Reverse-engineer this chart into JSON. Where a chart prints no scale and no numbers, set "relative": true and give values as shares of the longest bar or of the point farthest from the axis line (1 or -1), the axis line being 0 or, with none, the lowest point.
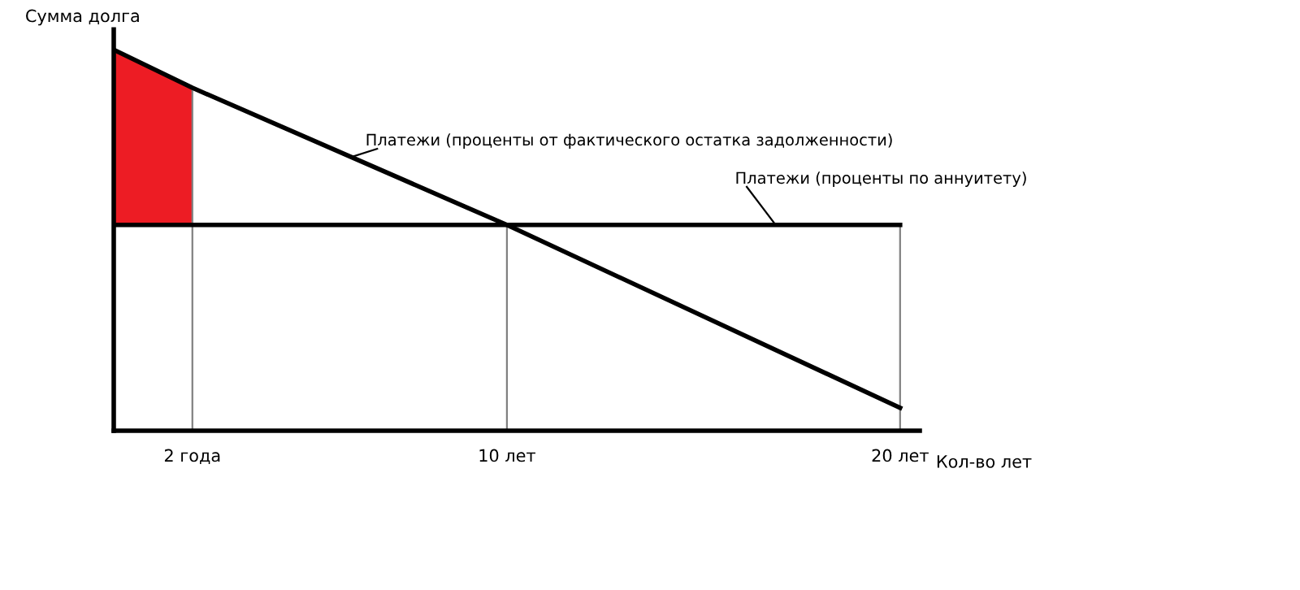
{
  "chart_data": {
    "type": "line",
    "relative": true,
    "tick_labels": "x",
    "grid": false,
    "legend": false,
    "marker": "none",
    "line_style": "solid",
    "xlabel": "Кол-во лет",
    "ylabel": "Сумма долга",
    "xlim": [
      0,
      20.5
    ],
    "xticks": [
      {
        "value": 2,
        "label": "2 года"
      },
      {
        "value": 10,
        "label": "10 лет"
      },
      {
        "value": 20,
        "label": "20 лет"
      }
    ],
    "series": [
      {
        "type": "area",
        "color": "#ed1c24",
        "x": [
          0,
          2
        ],
        "values": [
          1,
          0.9
        ]
      },
      {
        "name": "Платежи (проценты от фактического остатка задолженности)",
        "color": "#000000",
        "x": [
          0,
          2,
          10,
          20
        ],
        "values": [
          1,
          0.9,
          0.54,
          0.06
        ]
      },
      {
        "name": "Платежи (проценты по аннуитету)",
        "color": "#000000",
        "x": [
          0,
          20
        ],
        "values": [
          0.54,
          0.54
        ]
      }
    ],
    "ref_lines": [
      {
        "axis": "x",
        "value": 2,
        "color": "#808080"
      },
      {
        "axis": "x",
        "value": 10,
        "color": "#808080"
      },
      {
        "axis": "x",
        "value": 20,
        "color": "#808080"
      }
    ]
  }
}
